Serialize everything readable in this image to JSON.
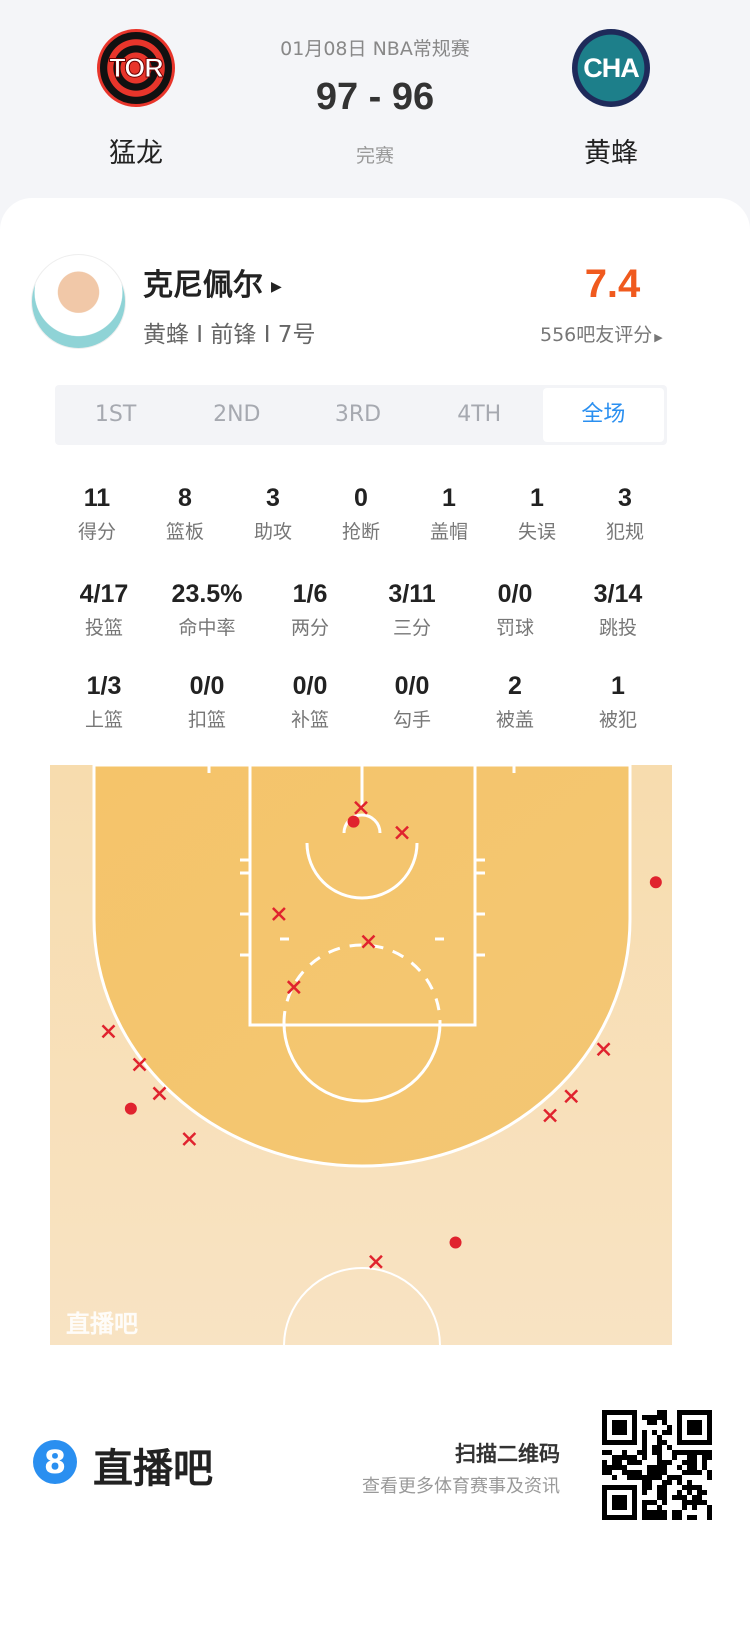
{
  "header": {
    "date_league": "01月08日 NBA常规赛",
    "score": "97 - 96",
    "status": "完赛",
    "home": {
      "abbr": "TOR",
      "name": "猛龙"
    },
    "away": {
      "abbr": "CHA",
      "name": "黄蜂"
    }
  },
  "player": {
    "name": "克尼佩尔",
    "info": "黄蜂 I 前锋 I 7号",
    "rating": "7.4",
    "rating_count": "556吧友评分",
    "rating_color": "#f05a1e"
  },
  "tabs": [
    {
      "label": "1ST"
    },
    {
      "label": "2ND"
    },
    {
      "label": "3RD"
    },
    {
      "label": "4TH"
    },
    {
      "label": "全场",
      "selected": true
    }
  ],
  "stats_row1": [
    {
      "v": "11",
      "l": "得分"
    },
    {
      "v": "8",
      "l": "篮板"
    },
    {
      "v": "3",
      "l": "助攻"
    },
    {
      "v": "0",
      "l": "抢断"
    },
    {
      "v": "1",
      "l": "盖帽"
    },
    {
      "v": "1",
      "l": "失误"
    },
    {
      "v": "3",
      "l": "犯规"
    }
  ],
  "stats_row2": [
    {
      "v": "4/17",
      "l": "投篮"
    },
    {
      "v": "23.5%",
      "l": "命中率"
    },
    {
      "v": "1/6",
      "l": "两分"
    },
    {
      "v": "3/11",
      "l": "三分"
    },
    {
      "v": "0/0",
      "l": "罚球"
    },
    {
      "v": "3/14",
      "l": "跳投"
    }
  ],
  "stats_row3": [
    {
      "v": "1/3",
      "l": "上篮"
    },
    {
      "v": "0/0",
      "l": "扣篮"
    },
    {
      "v": "0/0",
      "l": "补篮"
    },
    {
      "v": "0/0",
      "l": "勾手"
    },
    {
      "v": "2",
      "l": "被盖"
    },
    {
      "v": "1",
      "l": "被犯"
    }
  ],
  "shot_chart": {
    "watermark": "直播吧",
    "shot_color": "#e0232e",
    "made": [
      [
        -0.6,
        4.1
      ],
      [
        23.7,
        8.5
      ],
      [
        -18.5,
        24.9
      ],
      [
        7.6,
        34.6
      ]
    ],
    "missed": [
      [
        0.0,
        3.1
      ],
      [
        3.3,
        4.9
      ],
      [
        -6.6,
        10.8
      ],
      [
        0.6,
        12.8
      ],
      [
        -5.4,
        16.1
      ],
      [
        -20.3,
        19.3
      ],
      [
        -17.8,
        21.7
      ],
      [
        -16.2,
        23.8
      ],
      [
        -13.8,
        27.1
      ],
      [
        19.5,
        20.6
      ],
      [
        16.9,
        24.0
      ],
      [
        15.2,
        25.4
      ],
      [
        1.2,
        36.0
      ]
    ]
  },
  "footer": {
    "brand": "直播吧",
    "brand_icon": "8",
    "scan": "扫描二维码",
    "sub": "查看更多体育赛事及资讯"
  }
}
